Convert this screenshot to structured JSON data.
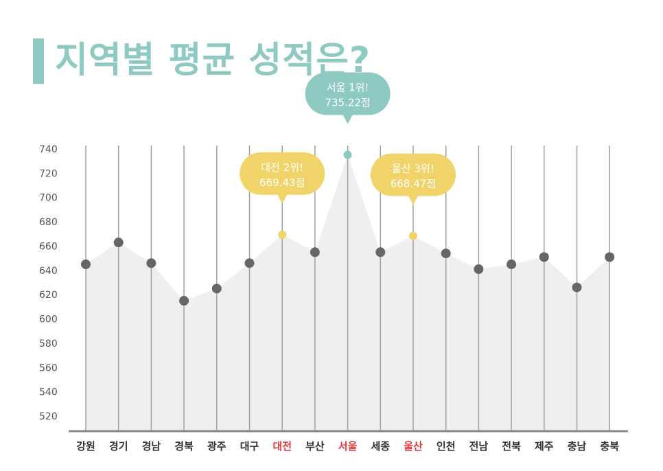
{
  "title": "지역별 평균 성적은?",
  "colors": {
    "accent": "#8ecac2",
    "point": "#666666",
    "highlight_point": "#f0d46a",
    "area": "#efefef",
    "grid": "#a0a0a0",
    "highlight_label": "#e03c3c"
  },
  "chart_data": {
    "type": "area",
    "title": "지역별 평균 성적은?",
    "xlabel": "",
    "ylabel": "",
    "ylim": [
      510,
      745
    ],
    "yticks": [
      520,
      540,
      560,
      580,
      600,
      620,
      640,
      660,
      680,
      700,
      720,
      740
    ],
    "categories": [
      "강원",
      "경기",
      "경남",
      "경북",
      "광주",
      "대구",
      "대전",
      "부산",
      "서울",
      "세종",
      "울산",
      "인천",
      "전남",
      "전북",
      "제주",
      "충남",
      "충북"
    ],
    "values": [
      645,
      663,
      646,
      615,
      625,
      646,
      669.43,
      655,
      735.22,
      655,
      668.47,
      654,
      641,
      645,
      651,
      626,
      651
    ],
    "highlighted": [
      "대전",
      "서울",
      "울산"
    ],
    "annotations": [
      {
        "category": "서울",
        "line1": "서울 1위!",
        "line2": "735.22점",
        "color": "#8ecac2"
      },
      {
        "category": "대전",
        "line1": "대전 2위!",
        "line2": "669.43점",
        "color": "#f0d46a"
      },
      {
        "category": "울산",
        "line1": "울산 3위!",
        "line2": "668.47점",
        "color": "#f0d46a"
      }
    ]
  }
}
